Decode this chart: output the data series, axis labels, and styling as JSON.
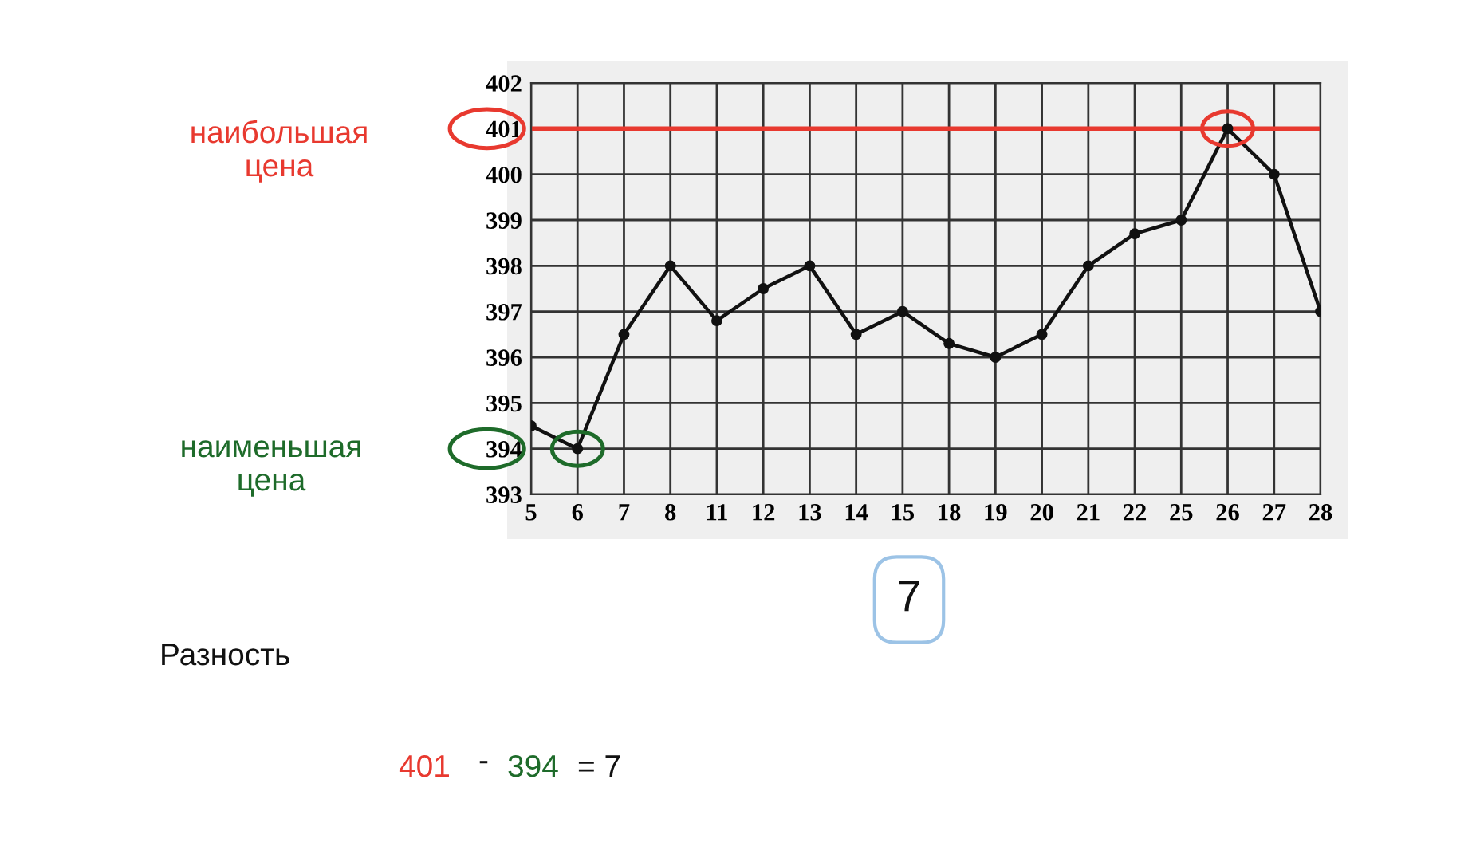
{
  "chart_data": {
    "type": "line",
    "categories": [
      "5",
      "6",
      "7",
      "8",
      "11",
      "12",
      "13",
      "14",
      "15",
      "18",
      "19",
      "20",
      "21",
      "22",
      "25",
      "26",
      "27",
      "28"
    ],
    "series": [
      {
        "color": "#111111",
        "values": [
          394.5,
          394,
          396.5,
          398,
          396.8,
          397.5,
          398,
          396.5,
          397,
          396.3,
          396,
          396.5,
          398,
          398.7,
          399,
          401,
          400,
          397
        ]
      }
    ],
    "ylim": [
      393,
      402
    ],
    "yticks": [
      393,
      394,
      395,
      396,
      397,
      398,
      399,
      400,
      401,
      402
    ],
    "grid": true,
    "marker": "circle",
    "line_style": "solid",
    "ref_lines": [
      {
        "axis": "y",
        "value": 401,
        "color": "#e8392f"
      }
    ],
    "annotations": [
      "наибольшая\nцена",
      "наименьшая\nцена",
      "7",
      "Разность",
      "401",
      "-",
      "394",
      "= 7"
    ]
  }
}
